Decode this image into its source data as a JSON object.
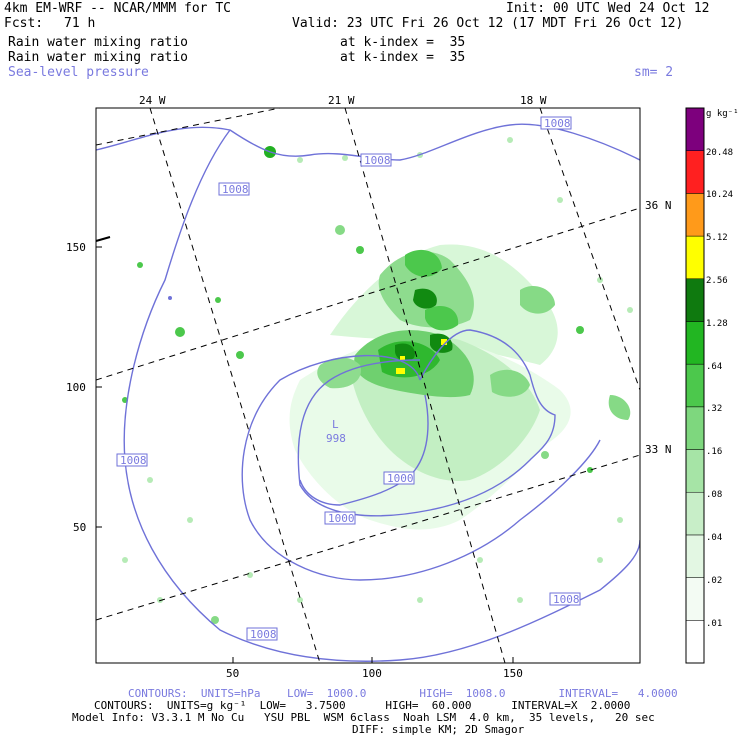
{
  "header": {
    "model": "4km EM-WRF -- NCAR/MMM for TC",
    "init": "Init: 00 UTC Wed 24 Oct 12",
    "fcst_label": "Fcst:",
    "fcst_value": "71 h",
    "valid": "Valid: 23 UTC Fri 26 Oct 12 (17 MDT Fri 26 Oct 12)",
    "field1": "Rain water mixing ratio",
    "field1_level": "at k-index =  35",
    "field2": "Rain water mixing ratio",
    "field2_level": "at k-index =  35",
    "field3": "Sea-level pressure",
    "smoothing": "sm= 2"
  },
  "map": {
    "lon_labels": [
      "24 W",
      "21 W",
      "18 W"
    ],
    "lat_labels": [
      "36 N",
      "33 N"
    ],
    "y_ticks": [
      "150",
      "100",
      "50"
    ],
    "x_ticks": [
      "50",
      "100",
      "150"
    ],
    "isobar_labels": [
      "1008",
      "1008",
      "1008",
      "1008",
      "1008",
      "1008",
      "1000",
      "1000"
    ],
    "low_marker": "L",
    "low_value": "998",
    "colors": {
      "isobar": "#6f72d8",
      "shade_levels": [
        "#f0fff0",
        "#d8f7d8",
        "#b6ebb6",
        "#86da86",
        "#55c655",
        "#22b022",
        "#118a11"
      ]
    }
  },
  "colorbar": {
    "units": "g kg⁻¹",
    "levels": [
      "20.48",
      "10.24",
      "5.12",
      "2.56",
      "1.28",
      ".64",
      ".32",
      ".16",
      ".08",
      ".04",
      ".02",
      ".01"
    ],
    "colors": [
      "#ffffff",
      "#f3fbf3",
      "#e3f7e3",
      "#c8eec8",
      "#a6e4a6",
      "#7ed77e",
      "#4cc84c",
      "#22b622",
      "#0f7a0f",
      "#ffff00",
      "#ff9a1a",
      "#ff2020",
      "#7d007d"
    ]
  },
  "footer": {
    "line1": "CONTOURS:  UNITS=hPa    LOW=  1000.0        HIGH=  1008.0        INTERVAL=   4.0000",
    "line2": "CONTOURS:  UNITS=g kg⁻¹  LOW=   3.7500      HIGH=  60.000      INTERVAL=X  2.0000",
    "line3": "Model Info: V3.3.1 M No Cu   YSU PBL  WSM 6class  Noah LSM  4.0 km,  35 levels,   20 sec",
    "line4": "DIFF: simple KM; 2D Smagor"
  }
}
